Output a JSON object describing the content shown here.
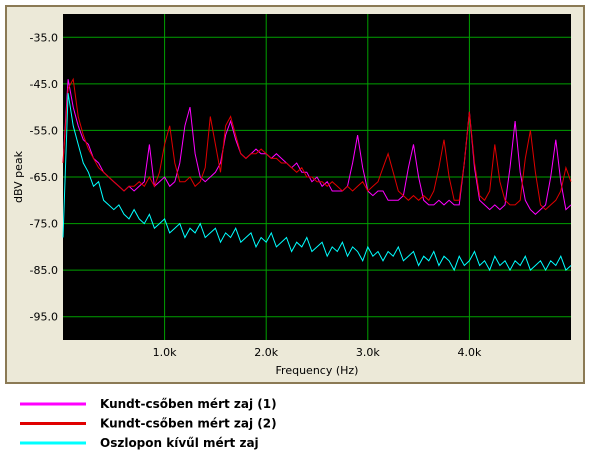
{
  "chart_data": {
    "type": "line",
    "xlabel": "Frequency (Hz)",
    "ylabel": "dBV peak",
    "xlim": [
      0,
      5000
    ],
    "ylim": [
      -100,
      -30
    ],
    "xticks": [
      {
        "value": 1000,
        "label": "1.0k"
      },
      {
        "value": 2000,
        "label": "2.0k"
      },
      {
        "value": 3000,
        "label": "3.0k"
      },
      {
        "value": 4000,
        "label": "4.0k"
      }
    ],
    "yticks": [
      {
        "value": -35,
        "label": "-35.0"
      },
      {
        "value": -45,
        "label": "-45.0"
      },
      {
        "value": -55,
        "label": "-55.0"
      },
      {
        "value": -65,
        "label": "-65.0"
      },
      {
        "value": -75,
        "label": "-75.0"
      },
      {
        "value": -85,
        "label": "-85.0"
      },
      {
        "value": -95,
        "label": "-95.0"
      }
    ],
    "grid": true,
    "x": [
      0,
      50,
      100,
      150,
      200,
      250,
      300,
      350,
      400,
      450,
      500,
      550,
      600,
      650,
      700,
      750,
      800,
      850,
      900,
      950,
      1000,
      1050,
      1100,
      1150,
      1200,
      1250,
      1300,
      1350,
      1400,
      1450,
      1500,
      1550,
      1600,
      1650,
      1700,
      1750,
      1800,
      1850,
      1900,
      1950,
      2000,
      2050,
      2100,
      2150,
      2200,
      2250,
      2300,
      2350,
      2400,
      2450,
      2500,
      2550,
      2600,
      2650,
      2700,
      2750,
      2800,
      2850,
      2900,
      2950,
      3000,
      3050,
      3100,
      3150,
      3200,
      3250,
      3300,
      3350,
      3400,
      3450,
      3500,
      3550,
      3600,
      3650,
      3700,
      3750,
      3800,
      3850,
      3900,
      3950,
      4000,
      4050,
      4100,
      4150,
      4200,
      4250,
      4300,
      4350,
      4400,
      4450,
      4500,
      4550,
      4600,
      4650,
      4700,
      4750,
      4800,
      4850,
      4900,
      4950,
      5000
    ],
    "series": [
      {
        "name": "Kundt-csőben mért zaj (1)",
        "color": "#ff00ff",
        "values": [
          -62,
          -44,
          -50,
          -54,
          -57,
          -58,
          -61,
          -62,
          -64,
          -65,
          -66,
          -67,
          -68,
          -67,
          -68,
          -67,
          -66,
          -58,
          -67,
          -66,
          -65,
          -67,
          -66,
          -62,
          -54,
          -50,
          -60,
          -65,
          -66,
          -65,
          -64,
          -62,
          -56,
          -53,
          -57,
          -60,
          -61,
          -60,
          -59,
          -60,
          -60,
          -61,
          -60,
          -61,
          -62,
          -63,
          -62,
          -64,
          -64,
          -66,
          -65,
          -67,
          -66,
          -68,
          -68,
          -68,
          -67,
          -62,
          -56,
          -63,
          -68,
          -69,
          -68,
          -68,
          -70,
          -70,
          -70,
          -69,
          -63,
          -58,
          -65,
          -70,
          -71,
          -71,
          -70,
          -71,
          -70,
          -71,
          -71,
          -62,
          -51,
          -63,
          -70,
          -71,
          -72,
          -71,
          -72,
          -71,
          -63,
          -53,
          -64,
          -70,
          -72,
          -73,
          -72,
          -71,
          -65,
          -57,
          -66,
          -72,
          -71
        ]
      },
      {
        "name": "Kundt-csőben mért zaj (2)",
        "color": "#e00000",
        "values": [
          -62,
          -46,
          -44,
          -52,
          -56,
          -59,
          -61,
          -63,
          -64,
          -65,
          -66,
          -67,
          -68,
          -67,
          -67,
          -66,
          -67,
          -65,
          -67,
          -64,
          -58,
          -54,
          -62,
          -66,
          -66,
          -65,
          -67,
          -66,
          -63,
          -52,
          -58,
          -64,
          -54,
          -52,
          -56,
          -60,
          -61,
          -60,
          -60,
          -59,
          -60,
          -61,
          -61,
          -62,
          -62,
          -63,
          -64,
          -63,
          -65,
          -65,
          -66,
          -66,
          -67,
          -66,
          -67,
          -68,
          -67,
          -68,
          -67,
          -66,
          -68,
          -67,
          -66,
          -63,
          -60,
          -64,
          -68,
          -69,
          -70,
          -69,
          -70,
          -69,
          -70,
          -68,
          -63,
          -57,
          -65,
          -70,
          -70,
          -62,
          -51,
          -62,
          -69,
          -70,
          -68,
          -58,
          -66,
          -70,
          -71,
          -71,
          -70,
          -61,
          -55,
          -64,
          -71,
          -72,
          -71,
          -70,
          -68,
          -63,
          -66
        ]
      },
      {
        "name": "Oszlopon kívűl mért zaj",
        "color": "#00ffff",
        "values": [
          -78,
          -47,
          -54,
          -58,
          -62,
          -64,
          -67,
          -66,
          -70,
          -71,
          -72,
          -71,
          -73,
          -74,
          -72,
          -74,
          -75,
          -73,
          -76,
          -75,
          -74,
          -77,
          -76,
          -75,
          -78,
          -76,
          -77,
          -75,
          -78,
          -77,
          -76,
          -79,
          -77,
          -78,
          -76,
          -79,
          -78,
          -77,
          -80,
          -78,
          -79,
          -77,
          -80,
          -79,
          -78,
          -81,
          -79,
          -80,
          -78,
          -81,
          -80,
          -79,
          -82,
          -80,
          -81,
          -79,
          -82,
          -80,
          -81,
          -83,
          -80,
          -82,
          -81,
          -83,
          -81,
          -82,
          -80,
          -83,
          -82,
          -81,
          -84,
          -82,
          -83,
          -81,
          -84,
          -82,
          -83,
          -85,
          -82,
          -84,
          -83,
          -81,
          -84,
          -83,
          -85,
          -82,
          -84,
          -83,
          -85,
          -83,
          -84,
          -82,
          -85,
          -84,
          -83,
          -85,
          -83,
          -84,
          -82,
          -85,
          -84
        ]
      }
    ]
  }
}
